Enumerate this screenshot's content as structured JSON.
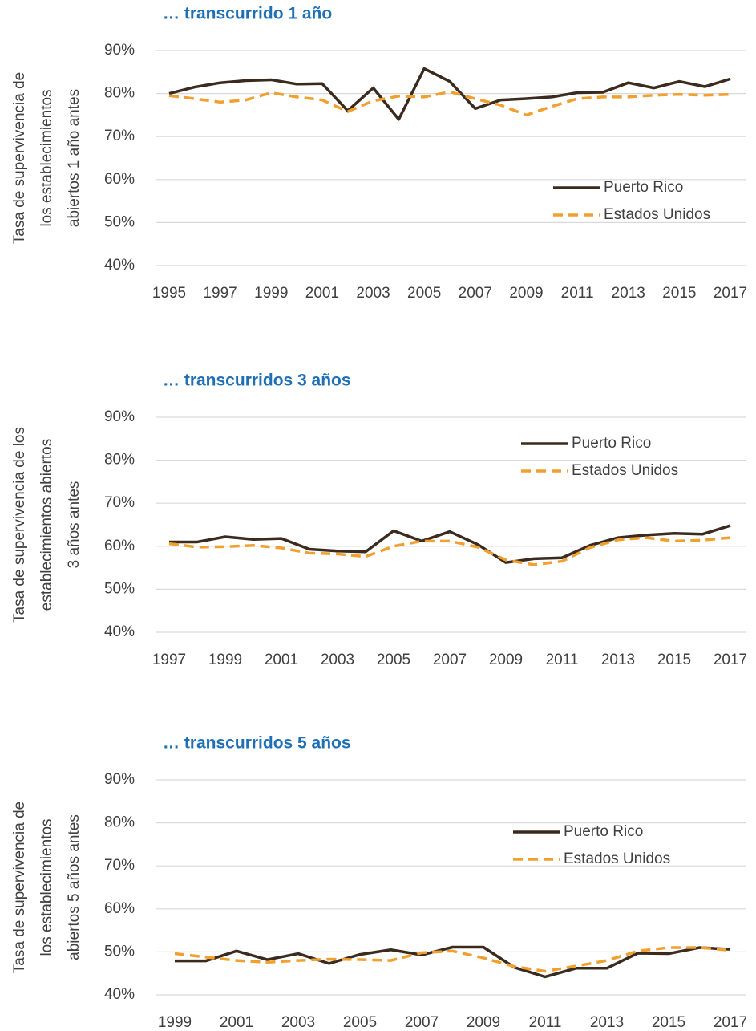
{
  "chart_data": [
    {
      "type": "line",
      "title": "… transcurrido 1 año",
      "y_label_lines": [
        "Tasa de supervivencia de",
        "los establecimientos",
        "abiertos 1 año antes"
      ],
      "x": [
        1995,
        1996,
        1997,
        1998,
        1999,
        2000,
        2001,
        2002,
        2003,
        2004,
        2005,
        2006,
        2007,
        2008,
        2009,
        2010,
        2011,
        2012,
        2013,
        2014,
        2015,
        2016,
        2017
      ],
      "xlim": [
        1995,
        2017
      ],
      "xticks": [
        1995,
        1997,
        1999,
        2001,
        2003,
        2005,
        2007,
        2009,
        2011,
        2013,
        2015,
        2017
      ],
      "ylim": [
        40,
        90
      ],
      "yticks": [
        {
          "value": 40,
          "label": "40%"
        },
        {
          "value": 50,
          "label": "50%"
        },
        {
          "value": 60,
          "label": "60%"
        },
        {
          "value": 70,
          "label": "70%"
        },
        {
          "value": 80,
          "label": "80%"
        },
        {
          "value": 90,
          "label": "90%"
        }
      ],
      "grid": true,
      "legend": "lower right",
      "series": [
        {
          "name": "Puerto Rico",
          "color": "#3b2a1e",
          "values": [
            80,
            81.5,
            82.5,
            83,
            83.2,
            82.2,
            82.3,
            76,
            81.3,
            74,
            85.8,
            82.8,
            76.5,
            78.5,
            78.8,
            79.2,
            80.2,
            80.3,
            82.5,
            81.3,
            82.8,
            81.6,
            83.4
          ]
        },
        {
          "name": "Estados Unidos",
          "color": "#f0a030",
          "dashed": true,
          "values": [
            79.5,
            78.8,
            78,
            78.5,
            80.2,
            79.2,
            78.5,
            75.8,
            78.3,
            79.4,
            79.2,
            80.4,
            78.8,
            77.3,
            75,
            77,
            78.8,
            79.2,
            79.2,
            79.6,
            79.8,
            79.6,
            79.8
          ]
        }
      ]
    },
    {
      "type": "line",
      "title": "… transcurridos 3 años",
      "y_label_lines": [
        "Tasa de supervivencia de los",
        "establecimientos abiertos",
        "3 años antes"
      ],
      "x": [
        1997,
        1998,
        1999,
        2000,
        2001,
        2002,
        2003,
        2004,
        2005,
        2006,
        2007,
        2008,
        2009,
        2010,
        2011,
        2012,
        2013,
        2014,
        2015,
        2016,
        2017
      ],
      "xlim": [
        1997,
        2017
      ],
      "xticks": [
        1997,
        1999,
        2001,
        2003,
        2005,
        2007,
        2009,
        2011,
        2013,
        2015,
        2017
      ],
      "ylim": [
        40,
        90
      ],
      "yticks": [
        {
          "value": 40,
          "label": "40%"
        },
        {
          "value": 50,
          "label": "50%"
        },
        {
          "value": 60,
          "label": "60%"
        },
        {
          "value": 70,
          "label": "70%"
        },
        {
          "value": 80,
          "label": "80%"
        },
        {
          "value": 90,
          "label": "90%"
        }
      ],
      "grid": true,
      "legend": "upper right",
      "series": [
        {
          "name": "Puerto Rico",
          "color": "#3b2a1e",
          "values": [
            61,
            61,
            62.2,
            61.6,
            61.8,
            59.3,
            58.9,
            58.7,
            63.6,
            61.2,
            63.4,
            60.4,
            56.2,
            57.1,
            57.3,
            60.2,
            62,
            62.6,
            63,
            62.8,
            64.8
          ]
        },
        {
          "name": "Estados Unidos",
          "color": "#f0a030",
          "dashed": true,
          "values": [
            60.6,
            59.8,
            59.9,
            60.2,
            59.6,
            58.4,
            58.2,
            57.6,
            60,
            61.2,
            61.2,
            59.8,
            56.8,
            55.7,
            56.5,
            59.7,
            61.5,
            62,
            61.2,
            61.4,
            62
          ]
        }
      ]
    },
    {
      "type": "line",
      "title": "… transcurridos 5 años",
      "y_label_lines": [
        "Tasa de supervivencia de",
        "los establecimientos",
        "abiertos 5 años antes"
      ],
      "x": [
        1999,
        2000,
        2001,
        2002,
        2003,
        2004,
        2005,
        2006,
        2007,
        2008,
        2009,
        2010,
        2011,
        2012,
        2013,
        2014,
        2015,
        2016,
        2017
      ],
      "xlim": [
        1999,
        2017
      ],
      "xticks": [
        1999,
        2001,
        2003,
        2005,
        2007,
        2009,
        2011,
        2013,
        2015,
        2017
      ],
      "ylim": [
        40,
        90
      ],
      "yticks": [
        {
          "value": 40,
          "label": "40%"
        },
        {
          "value": 50,
          "label": "50%"
        },
        {
          "value": 60,
          "label": "60%"
        },
        {
          "value": 70,
          "label": "70%"
        },
        {
          "value": 80,
          "label": "80%"
        },
        {
          "value": 90,
          "label": "90%"
        }
      ],
      "grid": true,
      "legend": "upper right",
      "series": [
        {
          "name": "Puerto Rico",
          "color": "#3b2a1e",
          "values": [
            47.9,
            47.9,
            50.2,
            48.2,
            49.6,
            47.3,
            49.4,
            50.5,
            49.3,
            51.1,
            51.1,
            46.4,
            44.2,
            46.2,
            46.2,
            49.7,
            49.6,
            51,
            50.6
          ]
        },
        {
          "name": "Estados Unidos",
          "color": "#f0a030",
          "dashed": true,
          "values": [
            49.6,
            48.8,
            48,
            47.6,
            48,
            48.3,
            48.2,
            48,
            49.8,
            50.2,
            48.6,
            46.6,
            45.5,
            46.7,
            48,
            50.2,
            51,
            51,
            50.4
          ]
        }
      ]
    }
  ]
}
